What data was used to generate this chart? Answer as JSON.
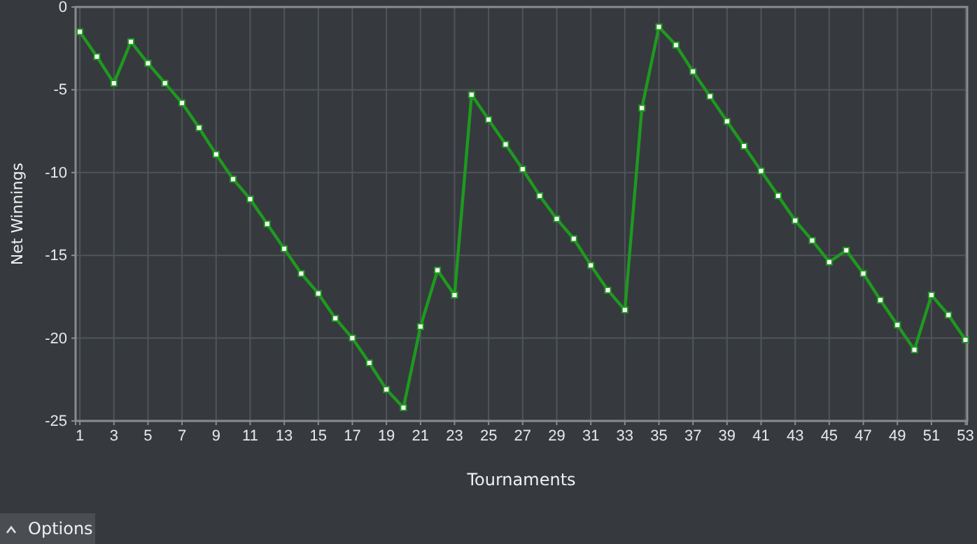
{
  "chart_data": {
    "type": "line",
    "xlabel": "Tournaments",
    "ylabel": "Net Winnings",
    "x": [
      1,
      2,
      3,
      4,
      5,
      6,
      7,
      8,
      9,
      10,
      11,
      12,
      13,
      14,
      15,
      16,
      17,
      18,
      19,
      20,
      21,
      22,
      23,
      24,
      25,
      26,
      27,
      28,
      29,
      30,
      31,
      32,
      33,
      34,
      35,
      36,
      37,
      38,
      39,
      40,
      41,
      42,
      43,
      44,
      45,
      46,
      47,
      48,
      49,
      50,
      51,
      52,
      53
    ],
    "series": [
      {
        "color": "#1e9a1e",
        "values": [
          -1.5,
          -3.0,
          -4.6,
          -2.1,
          -3.4,
          -4.6,
          -5.8,
          -7.3,
          -8.9,
          -10.4,
          -11.6,
          -13.1,
          -14.6,
          -16.1,
          -17.3,
          -18.8,
          -20.0,
          -21.5,
          -23.1,
          -24.2,
          -19.3,
          -15.9,
          -17.4,
          -5.3,
          -6.8,
          -8.3,
          -9.8,
          -11.4,
          -12.8,
          -14.0,
          -15.6,
          -17.1,
          -18.3,
          -6.1,
          -1.2,
          -2.3,
          -3.9,
          -5.4,
          -6.9,
          -8.4,
          -9.9,
          -11.4,
          -12.9,
          -14.1,
          -15.4,
          -14.7,
          -16.1,
          -17.7,
          -19.2,
          -20.7,
          -17.4,
          -18.6,
          -20.1
        ]
      }
    ],
    "xlim": [
      0.75,
      53.1
    ],
    "xticks": [
      1,
      3,
      5,
      7,
      9,
      11,
      13,
      15,
      17,
      19,
      21,
      23,
      25,
      27,
      29,
      31,
      33,
      35,
      37,
      39,
      41,
      43,
      45,
      47,
      49,
      51,
      53
    ],
    "ylim": [
      -25,
      0
    ],
    "yticks": [
      -25,
      -20,
      -15,
      -10,
      -5,
      0
    ],
    "grid": true,
    "marker": "square",
    "line_style": "solid",
    "annotations": [
      "Options"
    ]
  }
}
